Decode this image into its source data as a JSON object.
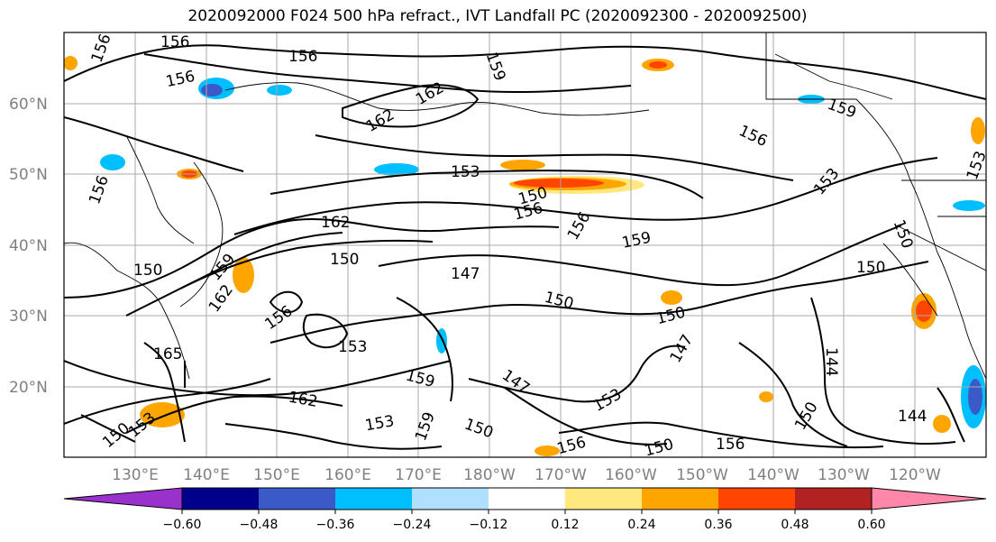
{
  "title": "2020092000 F024 500 hPa refract., IVT Landfall PC (2020092300 - 2020092500)",
  "lat_labels": [
    "60°N",
    "50°N",
    "40°N",
    "30°N",
    "20°N"
  ],
  "lon_labels": [
    "130°E",
    "140°E",
    "150°E",
    "160°E",
    "170°E",
    "180°W",
    "170°W",
    "160°W",
    "150°W",
    "140°W",
    "130°W",
    "120°W"
  ],
  "colorbar": {
    "ticks": [
      "−0.60",
      "−0.48",
      "−0.36",
      "−0.24",
      "−0.12",
      "0.12",
      "0.24",
      "0.36",
      "0.48",
      "0.60"
    ],
    "colors": [
      "#9932cc",
      "#00008b",
      "#3a5bc7",
      "#00bfff",
      "#b0e0ff",
      "#ffffff",
      "#ffe97f",
      "#ffa500",
      "#ff4500",
      "#b22222",
      "#ff88aa"
    ]
  },
  "contour_labels": [
    {
      "t": "156"
    },
    {
      "t": "156"
    },
    {
      "t": "156"
    },
    {
      "t": "156"
    },
    {
      "t": "159"
    },
    {
      "t": "162"
    },
    {
      "t": "162"
    },
    {
      "t": "156"
    },
    {
      "t": "159"
    },
    {
      "t": "156"
    },
    {
      "t": "153"
    },
    {
      "t": "153"
    },
    {
      "t": "150"
    },
    {
      "t": "156"
    },
    {
      "t": "156"
    },
    {
      "t": "153"
    },
    {
      "t": "162"
    },
    {
      "t": "159"
    },
    {
      "t": "150"
    },
    {
      "t": "147"
    },
    {
      "t": "150"
    },
    {
      "t": "150"
    },
    {
      "t": "150"
    },
    {
      "t": "150"
    },
    {
      "t": "159"
    },
    {
      "t": "162"
    },
    {
      "t": "156"
    },
    {
      "t": "153"
    },
    {
      "t": "165"
    },
    {
      "t": "159"
    },
    {
      "t": "162"
    },
    {
      "t": "147"
    },
    {
      "t": "147"
    },
    {
      "t": "144"
    },
    {
      "t": "153"
    },
    {
      "t": "150"
    },
    {
      "t": "153"
    },
    {
      "t": "156"
    },
    {
      "t": "150"
    },
    {
      "t": "150"
    },
    {
      "t": "150"
    },
    {
      "t": "153"
    },
    {
      "t": "150"
    },
    {
      "t": "156"
    },
    {
      "t": "144"
    },
    {
      "t": "159"
    }
  ]
}
